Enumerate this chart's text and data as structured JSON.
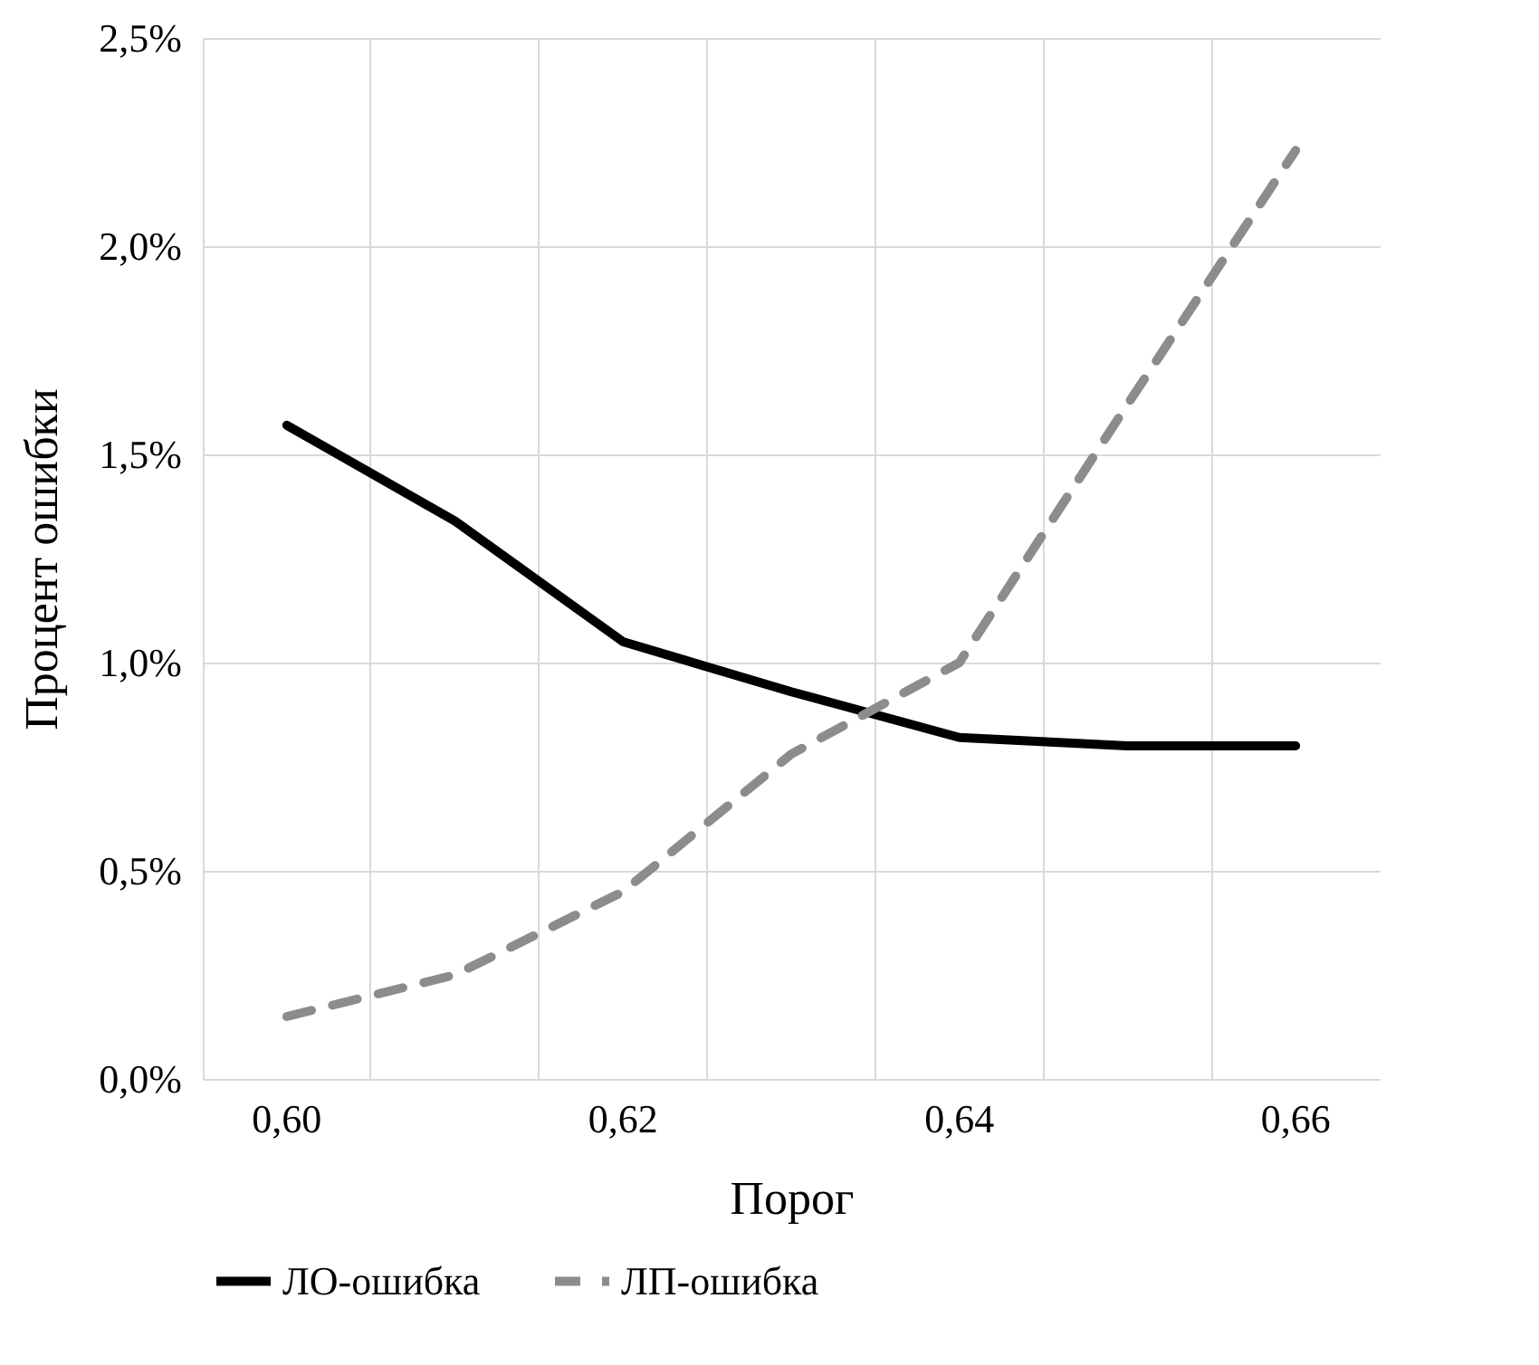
{
  "chart_data": {
    "type": "line",
    "xlabel": "Порог",
    "ylabel": "Процент ошибки",
    "categories": [
      "0,60",
      null,
      "0,62",
      null,
      "0,64",
      null,
      "0,66"
    ],
    "series": [
      {
        "name": "ЛО-ошибка",
        "color": "#000000",
        "line_style": "solid",
        "values": [
          1.57,
          1.34,
          1.05,
          0.93,
          0.82,
          0.8,
          0.8
        ]
      },
      {
        "name": "ЛП-ошибка",
        "color": "#8c8c8c",
        "line_style": "dashed",
        "values": [
          0.15,
          0.25,
          0.45,
          0.78,
          1.0,
          1.62,
          2.23
        ]
      }
    ],
    "ylim": [
      0,
      2.5
    ],
    "yticks": [
      {
        "value": 0,
        "label": "0,0%"
      },
      {
        "value": 0.5,
        "label": "0,5%"
      },
      {
        "value": 1,
        "label": "1,0%"
      },
      {
        "value": 1.5,
        "label": "1,5%"
      },
      {
        "value": 2,
        "label": "2,0%"
      },
      {
        "value": 2.5,
        "label": "2,5%"
      }
    ],
    "grid": true,
    "legend": "bottom",
    "marker": "none"
  }
}
